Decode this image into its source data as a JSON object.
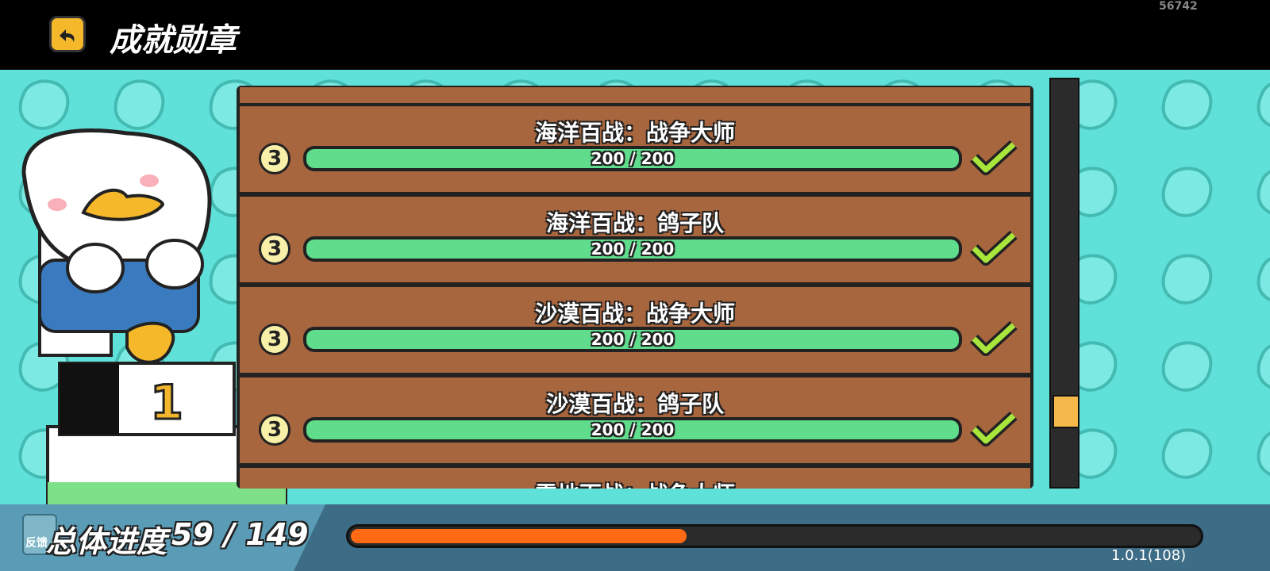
{
  "header": {
    "title": "成就勋章",
    "build_id": "56742"
  },
  "achievements": [
    {
      "name": "海洋百战：战争大师",
      "level": "3",
      "current": 200,
      "target": 200,
      "progress_label": "200 / 200"
    },
    {
      "name": "海洋百战：鸽子队",
      "level": "3",
      "current": 200,
      "target": 200,
      "progress_label": "200 / 200"
    },
    {
      "name": "沙漠百战：战争大师",
      "level": "3",
      "current": 200,
      "target": 200,
      "progress_label": "200 / 200"
    },
    {
      "name": "沙漠百战：鸽子队",
      "level": "3",
      "current": 200,
      "target": 200,
      "progress_label": "200 / 200"
    },
    {
      "name": "雪地百战：战争大师"
    }
  ],
  "footer": {
    "feedback": "反馈",
    "overall_label": "总体进度",
    "current": 59,
    "total": 149,
    "progress_label": "59 / 149",
    "version": "1.0.1(108)"
  }
}
